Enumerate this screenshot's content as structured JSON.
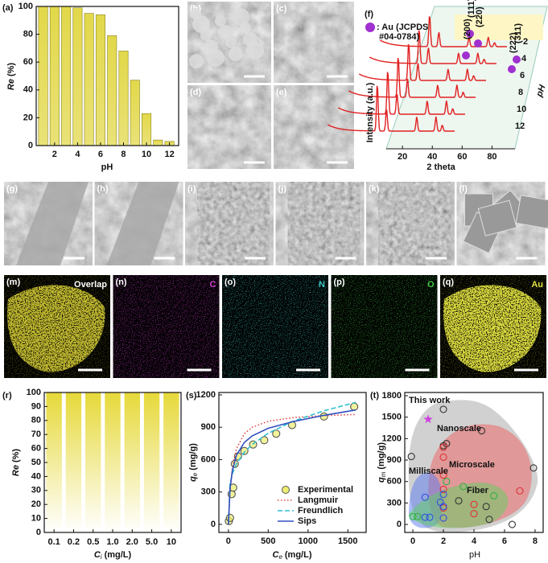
{
  "chart_data": [
    {
      "type": "bar",
      "panel_label": "(a)",
      "x": [
        1,
        2,
        3,
        4,
        5,
        6,
        7,
        8,
        9,
        10,
        11,
        12
      ],
      "values": [
        100,
        100,
        100,
        99,
        95,
        94,
        79,
        68,
        47,
        23,
        4,
        3
      ],
      "color": "#e2d84a",
      "xlim": [
        0.4,
        12.8
      ],
      "xticks": [
        2,
        4,
        6,
        8,
        10,
        12
      ],
      "ylim": [
        0,
        100
      ],
      "yticks": [
        0,
        20,
        40,
        60,
        80,
        100
      ],
      "xlabel": "pH",
      "ylabel": [
        "Re",
        "(%)"
      ]
    },
    {
      "type": "bar",
      "panel_label": "(r)",
      "categories": [
        "0.1",
        "0.2",
        "0.5",
        "1.0",
        "2.0",
        "5.0",
        "10"
      ],
      "values": [
        100,
        100,
        100,
        100,
        100,
        100,
        100
      ],
      "color": "#e6d93a",
      "ylim": [
        0,
        100
      ],
      "yticks": [
        0,
        10,
        20,
        30,
        40,
        50,
        60,
        70,
        80,
        90,
        100
      ],
      "xlabel": [
        "C",
        "i",
        "(mg/L)"
      ],
      "ylabel": [
        "Re",
        "(%)"
      ]
    },
    {
      "type": "scatter",
      "panel_label": "(s)",
      "xlim": [
        -120,
        1730
      ],
      "xticks": [
        0,
        500,
        1000,
        1500
      ],
      "ylim": [
        -75,
        1222
      ],
      "yticks": [
        0,
        300,
        600,
        900,
        1200
      ],
      "xlabel": [
        "C",
        "e",
        "(mg/L)"
      ],
      "ylabel": [
        "q",
        "e",
        "(mg/g)"
      ],
      "series": [
        {
          "name": "Experimental",
          "color": "#c8c832",
          "mode": "marker",
          "x": [
            5,
            20,
            40,
            60,
            80,
            120,
            200,
            310,
            450,
            600,
            800,
            1200,
            1580
          ],
          "values": [
            30,
            60,
            280,
            340,
            560,
            630,
            680,
            740,
            780,
            840,
            920,
            1000,
            1090
          ]
        },
        {
          "name": "Langmuir",
          "color": "#e04848",
          "mode": "dotted",
          "x": [
            0,
            20,
            50,
            100,
            200,
            300,
            500,
            800,
            1200,
            1600
          ],
          "values": [
            0,
            300,
            525,
            700,
            840,
            900,
            955,
            988,
            1008,
            1018
          ]
        },
        {
          "name": "Freundlich",
          "color": "#30c0d0",
          "mode": "dashed",
          "x": [
            0,
            20,
            50,
            100,
            200,
            300,
            500,
            800,
            1200,
            1600
          ],
          "values": [
            0,
            372,
            470,
            560,
            668,
            741,
            844,
            952,
            1053,
            1130
          ]
        },
        {
          "name": "Sips",
          "color": "#3050c0",
          "mode": "solid",
          "x": [
            0,
            20,
            50,
            100,
            200,
            300,
            500,
            800,
            1200,
            1600
          ],
          "values": [
            0,
            330,
            500,
            640,
            760,
            820,
            890,
            950,
            1010,
            1060
          ]
        }
      ]
    },
    {
      "type": "scatter",
      "panel_label": "(t)",
      "xlim": [
        -0.53,
        8.53
      ],
      "xticks": [
        0,
        2,
        4,
        6,
        8
      ],
      "ylim": [
        -112,
        1845
      ],
      "yticks": [
        0,
        300,
        600,
        900,
        1200,
        1500,
        1800
      ],
      "xlabel": "pH",
      "ylabel": [
        "q",
        "m",
        "(mg/g)"
      ],
      "series": [
        {
          "name": "Nanoscale",
          "color": "#333333",
          "x": [
            2,
            -0.1,
            2.2,
            2,
            4.5,
            7.9,
            6.5,
            4.8,
            5,
            3
          ],
          "values": [
            1610,
            950,
            1130,
            1100,
            1310,
            790,
            0,
            250,
            70,
            330
          ]
        },
        {
          "name": "Microscale",
          "color": "#e03030",
          "x": [
            2,
            2,
            2,
            7,
            4,
            4,
            2,
            2
          ],
          "values": [
            940,
            690,
            1080,
            470,
            280,
            150,
            490,
            230
          ]
        },
        {
          "name": "Milliscale",
          "color": "#3050e0",
          "x": [
            0.8,
            1.8,
            2,
            2,
            2,
            0.8,
            1.1
          ],
          "values": [
            380,
            310,
            420,
            250,
            90,
            100,
            100
          ]
        },
        {
          "name": "Fiber",
          "color": "#30b040",
          "x": [
            0,
            0.3,
            3.3,
            5.3,
            2.2
          ],
          "values": [
            110,
            110,
            530,
            400,
            600
          ]
        },
        {
          "name": "This work",
          "color": "#d040e0",
          "x": [
            1
          ],
          "values": [
            1470
          ]
        }
      ]
    }
  ],
  "panel_f": {
    "label": "(f)",
    "legend": [
      ": Au (JCPDS",
      "#04-0784)"
    ],
    "peaks": [
      "(111)",
      "(200)",
      "(220)",
      "(311)",
      "(222)"
    ],
    "ph_rows": [
      "2",
      "4",
      "6",
      "8",
      "10",
      "12"
    ],
    "z_label": "pH",
    "y_label": "Intensity (a.u.)",
    "x_label": "2 theta",
    "xticks": [
      20,
      40,
      60,
      80
    ],
    "xlim": [
      0,
      90
    ]
  },
  "sem_small": [
    "(b)",
    "(c)",
    "(d)",
    "(e)"
  ],
  "sem_row": [
    "(g)",
    "(h)",
    "(i)",
    "(j)",
    "(k)",
    "(l)"
  ],
  "eds": [
    {
      "label": "(m)",
      "element": "Overlap",
      "color": "#ffffff"
    },
    {
      "label": "(n)",
      "element": "C",
      "color": "#d040d0"
    },
    {
      "label": "(o)",
      "element": "N",
      "color": "#40c8c8"
    },
    {
      "label": "(p)",
      "element": "O",
      "color": "#40c040"
    },
    {
      "label": "(q)",
      "element": "Au",
      "color": "#e0e040"
    }
  ]
}
